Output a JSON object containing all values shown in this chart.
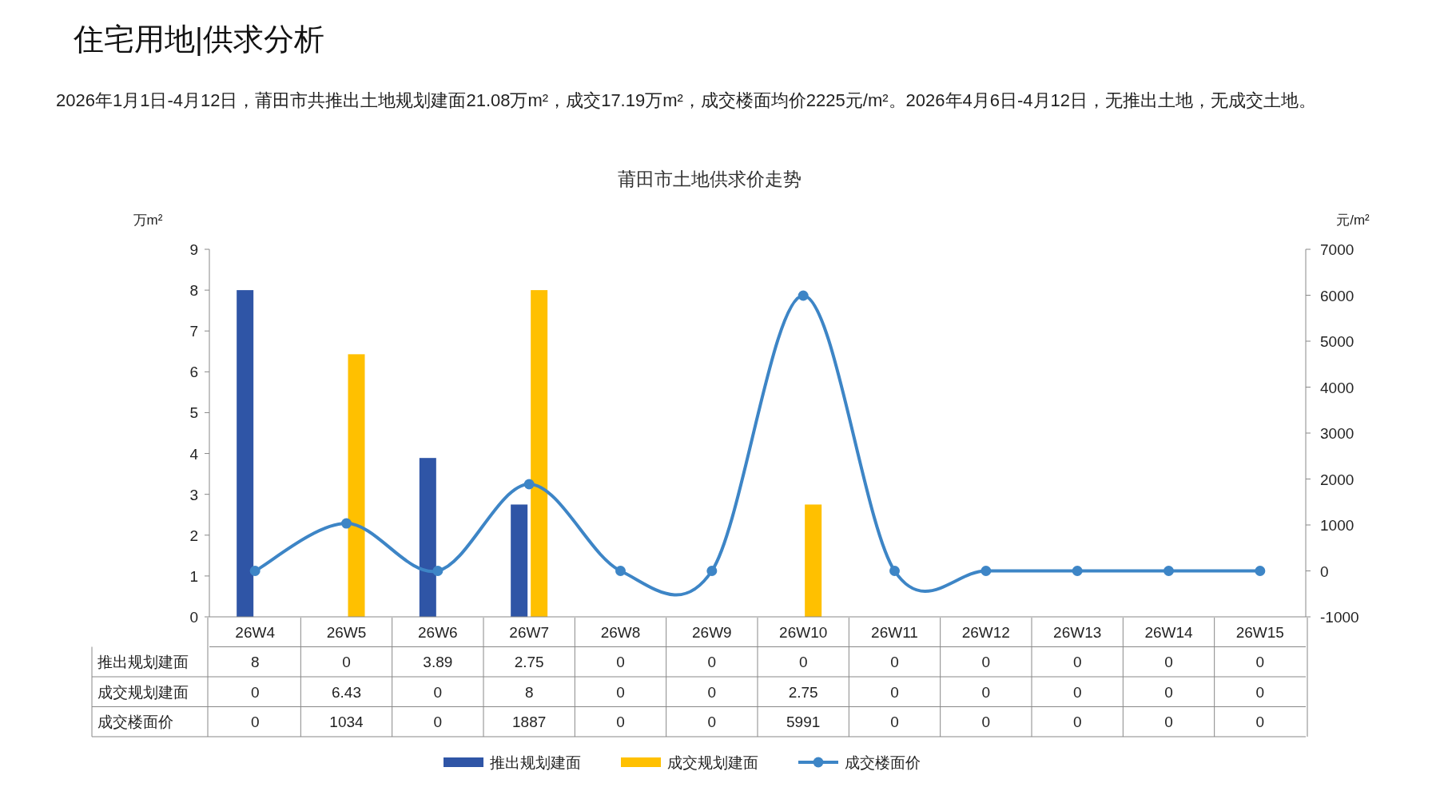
{
  "chart_data": {
    "type": "bar",
    "title": "莆田市土地供求价走势",
    "annotations": [
      "住宅用地|供求分析",
      "2026年1月1日-4月12日，莆田市共推出土地规划建面21.08万m²，成交17.19万m²，成交楼面均价2225元/m²。2026年4月6日-4月12日，无推出土地，无成交土地。"
    ],
    "ylabel": "万m²",
    "y2label": "元/m²",
    "categories": [
      "26W4",
      "26W5",
      "26W6",
      "26W7",
      "26W8",
      "26W9",
      "26W10",
      "26W11",
      "26W12",
      "26W13",
      "26W14",
      "26W15"
    ],
    "series": [
      {
        "name": "推出规划建面",
        "color": "#2f55a6",
        "values": [
          8,
          0,
          3.89,
          2.75,
          0,
          0,
          0,
          0,
          0,
          0,
          0,
          0
        ]
      },
      {
        "name": "成交规划建面",
        "color": "#ffc000",
        "values": [
          0,
          6.43,
          0,
          8,
          0,
          0,
          2.75,
          0,
          0,
          0,
          0,
          0
        ]
      },
      {
        "name": "成交楼面价",
        "type": "line",
        "axis": "y2",
        "color": "#3d85c6",
        "marker": "circle",
        "values": [
          0,
          1034,
          0,
          1887,
          0,
          0,
          5991,
          0,
          0,
          0,
          0,
          0
        ]
      }
    ],
    "ylim": [
      0,
      9
    ],
    "yticks": [
      0,
      1,
      2,
      3,
      4,
      5,
      6,
      7,
      8,
      9
    ],
    "y2lim": [
      -1000,
      7000
    ],
    "y2ticks": [
      -1000,
      0,
      1000,
      2000,
      3000,
      4000,
      5000,
      6000,
      7000
    ],
    "data_labels": true,
    "legend": "bottom",
    "grid": false
  }
}
